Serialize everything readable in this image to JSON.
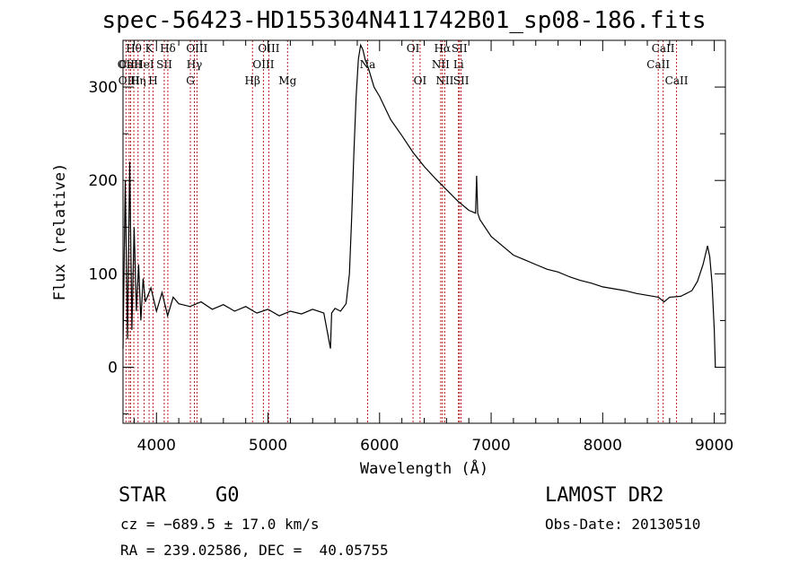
{
  "title": "spec-56423-HD155304N411742B01_sp08-186.fits",
  "info": {
    "class_label": "STAR",
    "subclass_label": "G0",
    "survey_label": "LAMOST DR2",
    "cz_text": "cz = −689.5 ± 17.0 km/s",
    "obsdate_text": "Obs-Date: 20130510",
    "radec_text": "RA = 239.02586, DEC =  40.05755"
  },
  "chart_data": {
    "type": "line",
    "title": "spec-56423-HD155304N411742B01_sp08-186.fits",
    "xlabel": "Wavelength (Å)",
    "ylabel": "Flux (relative)",
    "xlim": [
      3700,
      9100
    ],
    "ylim": [
      -60,
      350
    ],
    "xticks": [
      4000,
      5000,
      6000,
      7000,
      8000,
      9000
    ],
    "yticks": [
      0,
      100,
      200,
      300
    ],
    "grid": false,
    "series": [
      {
        "x": [
          3700,
          3720,
          3740,
          3760,
          3780,
          3800,
          3820,
          3840,
          3860,
          3880,
          3900,
          3950,
          4000,
          4050,
          4100,
          4150,
          4200,
          4300,
          4400,
          4500,
          4600,
          4700,
          4800,
          4900,
          5000,
          5100,
          5200,
          5300,
          5400,
          5500,
          5560,
          5570,
          5600,
          5650,
          5700,
          5730,
          5750,
          5770,
          5790,
          5810,
          5830,
          5850,
          5870,
          5900,
          5950,
          6000,
          6100,
          6200,
          6300,
          6400,
          6500,
          6600,
          6700,
          6800,
          6860,
          6870,
          6880,
          6900,
          7000,
          7100,
          7200,
          7300,
          7400,
          7500,
          7600,
          7700,
          7800,
          7900,
          8000,
          8100,
          8200,
          8300,
          8400,
          8500,
          8550,
          8600,
          8700,
          8800,
          8850,
          8900,
          8940,
          8960,
          8980,
          9000,
          9010
        ],
        "y": [
          20,
          200,
          30,
          220,
          40,
          150,
          60,
          110,
          50,
          95,
          70,
          85,
          60,
          80,
          55,
          75,
          68,
          65,
          70,
          62,
          67,
          60,
          65,
          58,
          62,
          55,
          60,
          57,
          62,
          58,
          20,
          58,
          63,
          60,
          68,
          100,
          160,
          230,
          290,
          330,
          345,
          340,
          330,
          320,
          300,
          290,
          265,
          248,
          230,
          215,
          202,
          190,
          178,
          168,
          165,
          205,
          165,
          158,
          140,
          130,
          120,
          115,
          110,
          105,
          102,
          97,
          93,
          90,
          86,
          84,
          82,
          79,
          77,
          75,
          70,
          75,
          76,
          82,
          92,
          110,
          130,
          118,
          90,
          40,
          0
        ]
      }
    ],
    "lines": [
      {
        "name": "Hθ",
        "x": 3797,
        "row": 0
      },
      {
        "name": "OII",
        "x": 3727,
        "row": 1
      },
      {
        "name": "OIII",
        "x": 3755,
        "row": 2
      },
      {
        "name": "CaII",
        "x": 3768,
        "row": 1
      },
      {
        "name": "Hη",
        "x": 3835,
        "row": 2
      },
      {
        "name": "HeI",
        "x": 3889,
        "row": 1
      },
      {
        "name": "K",
        "x": 3934,
        "row": 0
      },
      {
        "name": "SII",
        "x": 4070,
        "row": 1
      },
      {
        "name": "H",
        "x": 3969,
        "row": 2
      },
      {
        "name": "Hδ",
        "x": 4102,
        "row": 0
      },
      {
        "name": "OIII",
        "x": 4363,
        "row": 0
      },
      {
        "name": "Hγ",
        "x": 4340,
        "row": 1
      },
      {
        "name": "G",
        "x": 4304,
        "row": 2
      },
      {
        "name": "Hβ",
        "x": 4861,
        "row": 2
      },
      {
        "name": "OIII",
        "x": 5007,
        "row": 0
      },
      {
        "name": "OIII",
        "x": 4959,
        "row": 1
      },
      {
        "name": "Mg",
        "x": 5175,
        "row": 2
      },
      {
        "name": "Na",
        "x": 5893,
        "row": 1
      },
      {
        "name": "OI",
        "x": 6300,
        "row": 0
      },
      {
        "name": "OI",
        "x": 6363,
        "row": 2
      },
      {
        "name": "Hα",
        "x": 6563,
        "row": 0
      },
      {
        "name": "NII",
        "x": 6548,
        "row": 1
      },
      {
        "name": "NII",
        "x": 6584,
        "row": 2
      },
      {
        "name": "SII",
        "x": 6716,
        "row": 0
      },
      {
        "name": "Li",
        "x": 6708,
        "row": 1
      },
      {
        "name": "SII",
        "x": 6731,
        "row": 2
      },
      {
        "name": "CaII",
        "x": 8498,
        "row": 1
      },
      {
        "name": "CaII",
        "x": 8542,
        "row": 0
      },
      {
        "name": "CaII",
        "x": 8662,
        "row": 2
      }
    ],
    "colors": {
      "axis": "#000000",
      "spectrum": "#000000",
      "lines": "#b22222"
    }
  }
}
